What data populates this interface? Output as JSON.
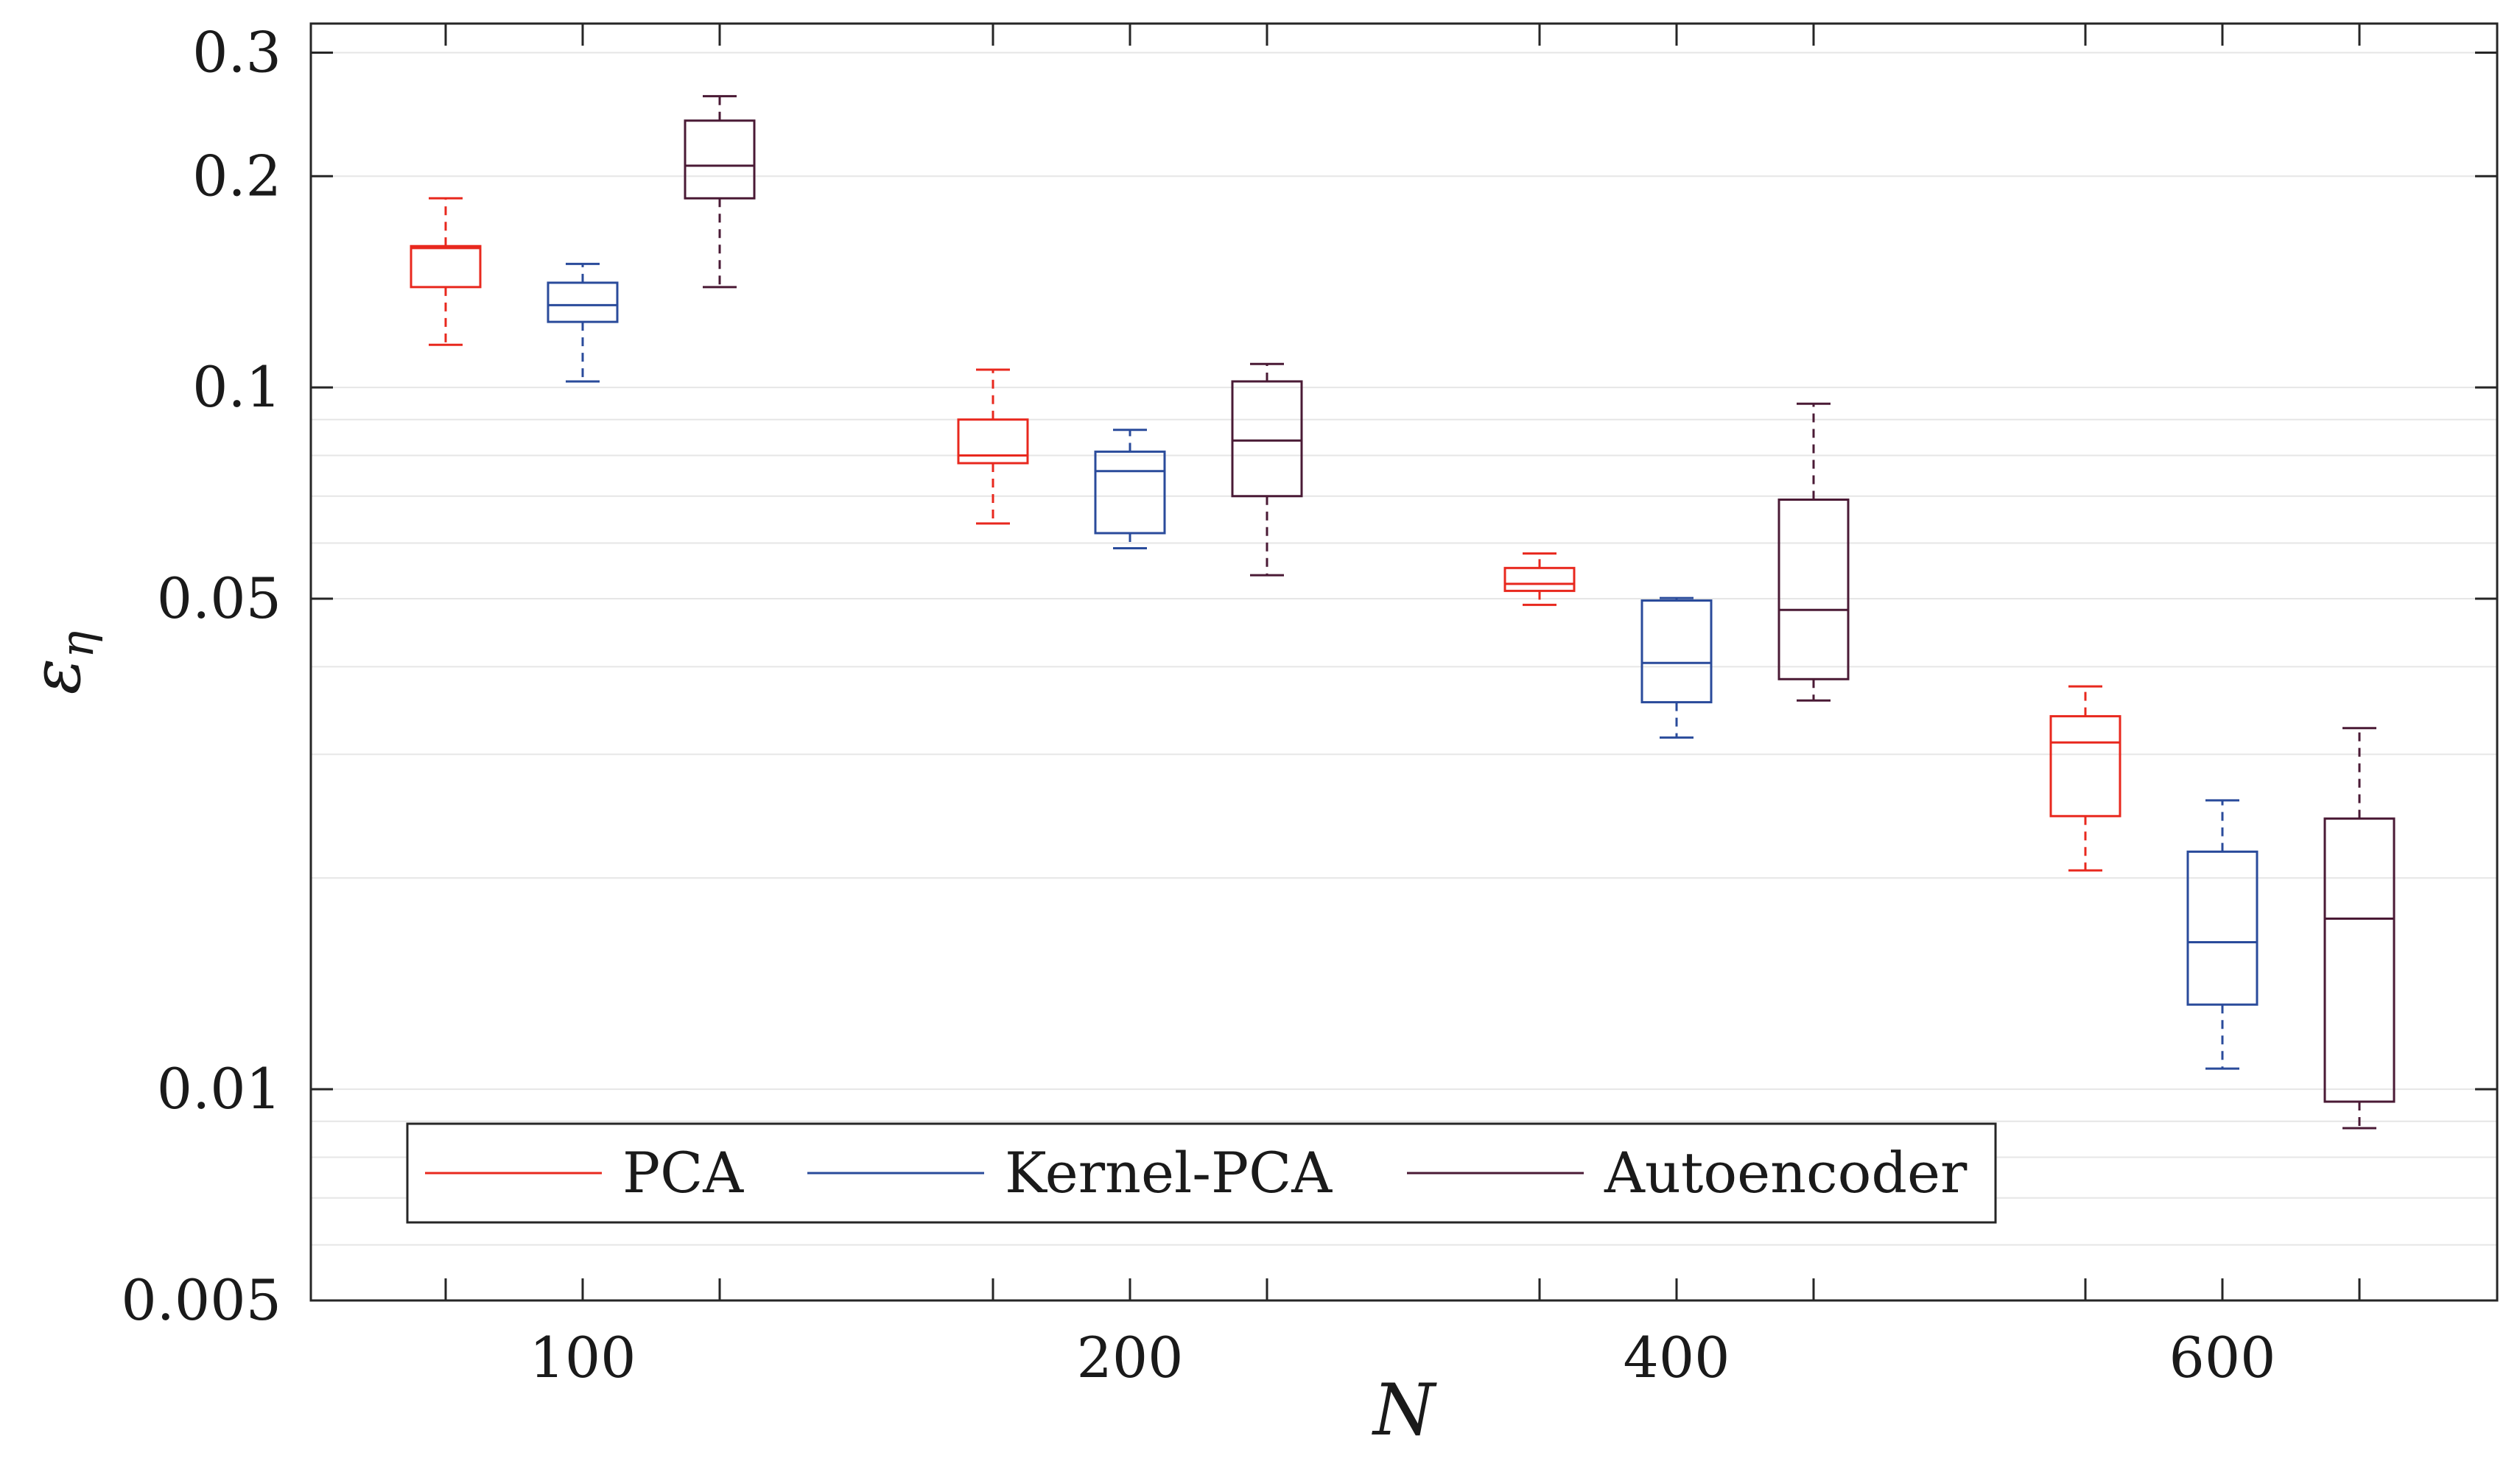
{
  "chart_data": {
    "type": "box",
    "title": "",
    "xlabel": "N",
    "ylabel_symbol": "ε",
    "ylabel_subscript": "η",
    "yscale": "log",
    "ylim": [
      0.005,
      0.33
    ],
    "categories": [
      "100",
      "200",
      "400",
      "600"
    ],
    "ytick_values": [
      0.005,
      0.01,
      0.05,
      0.1,
      0.2,
      0.3
    ],
    "ytick_labels": [
      "0.005",
      "0.01",
      "0.05",
      "0.1",
      "0.2",
      "0.3"
    ],
    "grid": true,
    "legend_position": "bottom-left",
    "series": [
      {
        "name": "PCA",
        "color": "#e8281e",
        "boxes": [
          {
            "category": "100",
            "whisker_low": 0.115,
            "q1": 0.139,
            "median": 0.158,
            "q3": 0.159,
            "whisker_high": 0.186
          },
          {
            "category": "200",
            "whisker_low": 0.064,
            "q1": 0.078,
            "median": 0.08,
            "q3": 0.09,
            "whisker_high": 0.106
          },
          {
            "category": "400",
            "whisker_low": 0.049,
            "q1": 0.0513,
            "median": 0.0525,
            "q3": 0.0553,
            "whisker_high": 0.058
          },
          {
            "category": "600",
            "whisker_low": 0.0205,
            "q1": 0.0245,
            "median": 0.0312,
            "q3": 0.034,
            "whisker_high": 0.0375
          }
        ]
      },
      {
        "name": "Kernel-PCA",
        "color": "#2a4b9b",
        "boxes": [
          {
            "category": "100",
            "whisker_low": 0.102,
            "q1": 0.124,
            "median": 0.131,
            "q3": 0.141,
            "whisker_high": 0.15
          },
          {
            "category": "200",
            "whisker_low": 0.059,
            "q1": 0.062,
            "median": 0.076,
            "q3": 0.081,
            "whisker_high": 0.087
          },
          {
            "category": "400",
            "whisker_low": 0.0317,
            "q1": 0.0356,
            "median": 0.0405,
            "q3": 0.0497,
            "whisker_high": 0.0501
          },
          {
            "category": "600",
            "whisker_low": 0.0107,
            "q1": 0.0132,
            "median": 0.0162,
            "q3": 0.0218,
            "whisker_high": 0.0258
          }
        ]
      },
      {
        "name": "Autoencoder",
        "color": "#4a1a35",
        "boxes": [
          {
            "category": "100",
            "whisker_low": 0.139,
            "q1": 0.186,
            "median": 0.207,
            "q3": 0.24,
            "whisker_high": 0.26
          },
          {
            "category": "200",
            "whisker_low": 0.054,
            "q1": 0.07,
            "median": 0.084,
            "q3": 0.102,
            "whisker_high": 0.108
          },
          {
            "category": "400",
            "whisker_low": 0.0358,
            "q1": 0.0384,
            "median": 0.0482,
            "q3": 0.0692,
            "whisker_high": 0.0948
          },
          {
            "category": "600",
            "whisker_low": 0.0088,
            "q1": 0.0096,
            "median": 0.0175,
            "q3": 0.0243,
            "whisker_high": 0.0327
          }
        ]
      }
    ]
  }
}
